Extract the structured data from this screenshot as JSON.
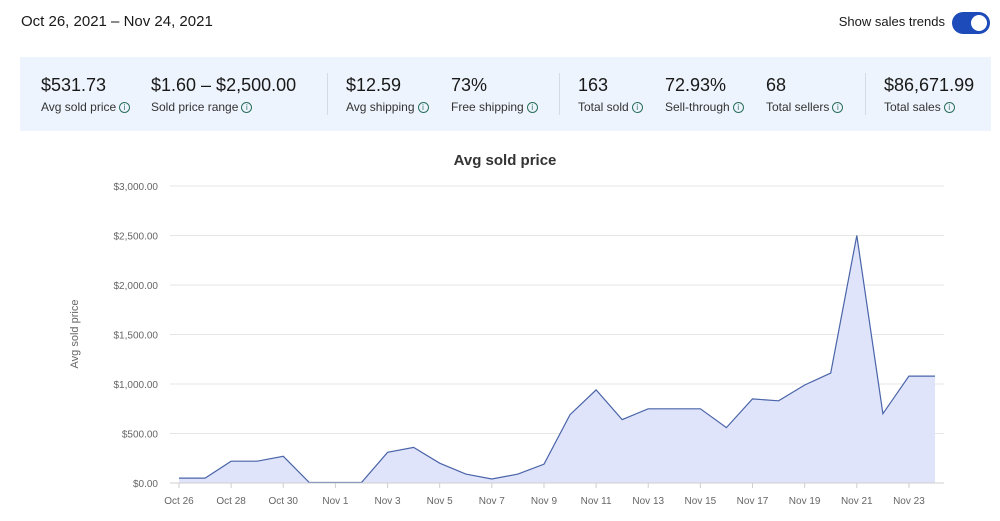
{
  "header": {
    "date_range": "Oct 26, 2021 – Nov 24, 2021",
    "trends_label": "Show sales trends",
    "trends_on": true
  },
  "stats": [
    {
      "value": "$531.73",
      "label": "Avg sold price"
    },
    {
      "value": "$1.60 – $2,500.00",
      "label": "Sold price range"
    },
    {
      "value": "$12.59",
      "label": "Avg shipping"
    },
    {
      "value": "73%",
      "label": "Free shipping"
    },
    {
      "value": "163",
      "label": "Total sold"
    },
    {
      "value": "72.93%",
      "label": "Sell-through"
    },
    {
      "value": "68",
      "label": "Total sellers"
    },
    {
      "value": "$86,671.99",
      "label": "Total sales"
    }
  ],
  "colors": {
    "accent": "#1d4bb9",
    "line": "#4a64a8",
    "area": "#dfe4fb",
    "stats_bg": "#eef4fd"
  },
  "chart_data": {
    "type": "area",
    "title": "Avg sold price",
    "ylabel": "Avg sold price",
    "ylim": [
      0,
      3000
    ],
    "yticks": [
      "$0.00",
      "$500.00",
      "$1,000.00",
      "$1,500.00",
      "$2,000.00",
      "$2,500.00",
      "$3,000.00"
    ],
    "ytick_values": [
      0,
      500,
      1000,
      1500,
      2000,
      2500,
      3000
    ],
    "x": [
      "Oct 26",
      "Oct 27",
      "Oct 28",
      "Oct 29",
      "Oct 30",
      "Oct 31",
      "Nov 1",
      "Nov 2",
      "Nov 3",
      "Nov 4",
      "Nov 5",
      "Nov 6",
      "Nov 7",
      "Nov 8",
      "Nov 9",
      "Nov 10",
      "Nov 11",
      "Nov 12",
      "Nov 13",
      "Nov 14",
      "Nov 15",
      "Nov 16",
      "Nov 17",
      "Nov 18",
      "Nov 19",
      "Nov 20",
      "Nov 21",
      "Nov 22",
      "Nov 23",
      "Nov 24"
    ],
    "xtick_labels": [
      "Oct 26",
      "Oct 28",
      "Oct 30",
      "Nov 1",
      "Nov 3",
      "Nov 5",
      "Nov 7",
      "Nov 9",
      "Nov 11",
      "Nov 13",
      "Nov 15",
      "Nov 17",
      "Nov 19",
      "Nov 21",
      "Nov 23"
    ],
    "values": [
      50,
      50,
      220,
      220,
      270,
      5,
      5,
      5,
      310,
      360,
      200,
      90,
      40,
      90,
      190,
      690,
      940,
      640,
      750,
      750,
      750,
      560,
      850,
      830,
      990,
      1110,
      2500,
      700,
      1080,
      1080
    ],
    "grid": true
  }
}
